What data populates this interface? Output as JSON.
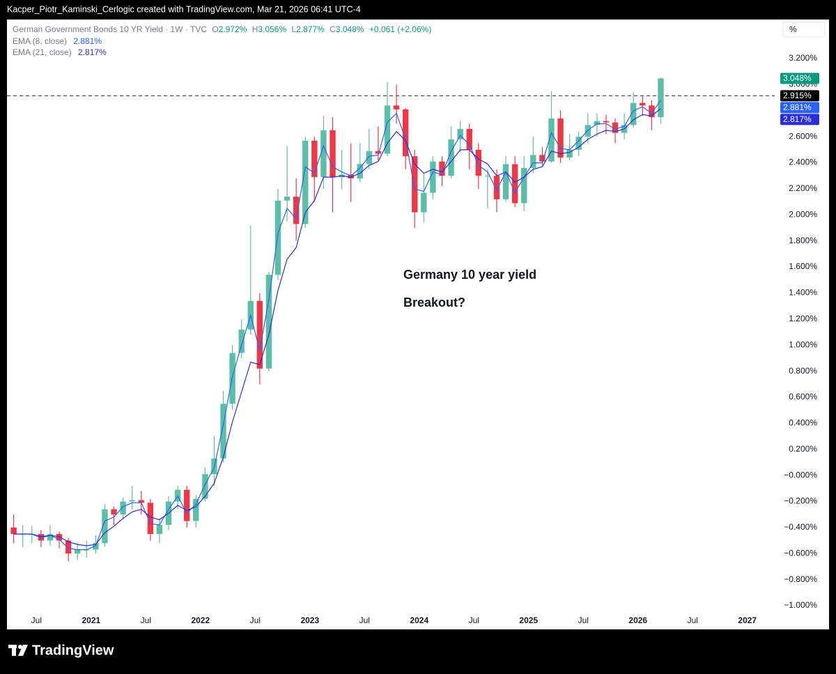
{
  "header": {
    "attribution": "Kacper_Piotr_Kaminski_Cerlogic created with TradingView.com, Mar 21, 2026 06:41 UTC-4"
  },
  "footer": {
    "brand": "TradingView"
  },
  "chart_data": {
    "type": "candlestick",
    "title": "German Government Bonds 10 YR Yield · 1W · TVC",
    "ohlc_legend": {
      "open_label": "O",
      "open": {
        "value": 2.972,
        "label": "2.972%"
      },
      "high_label": "H",
      "high": {
        "value": 3.056,
        "label": "3.056%"
      },
      "low_label": "L",
      "low": {
        "value": 2.877,
        "label": "2.877%"
      },
      "close_label": "C",
      "close": {
        "value": 3.048,
        "label": "3.048%"
      },
      "change": {
        "value": 0.061,
        "label": "+0.061 (+2.06%)"
      }
    },
    "x": [
      "2020-04",
      "2020-05",
      "2020-06",
      "2020-07",
      "2020-08",
      "2020-09",
      "2020-10",
      "2020-11",
      "2020-12",
      "2021-01",
      "2021-02",
      "2021-03",
      "2021-04",
      "2021-05",
      "2021-06",
      "2021-07",
      "2021-08",
      "2021-09",
      "2021-10",
      "2021-11",
      "2021-12",
      "2022-01",
      "2022-02",
      "2022-03",
      "2022-04",
      "2022-05",
      "2022-06",
      "2022-07",
      "2022-08",
      "2022-09",
      "2022-10",
      "2022-11",
      "2022-12",
      "2023-01",
      "2023-02",
      "2023-03",
      "2023-04",
      "2023-05",
      "2023-06",
      "2023-07",
      "2023-08",
      "2023-09",
      "2023-10",
      "2023-11",
      "2023-12",
      "2024-01",
      "2024-02",
      "2024-03",
      "2024-04",
      "2024-05",
      "2024-06",
      "2024-07",
      "2024-08",
      "2024-09",
      "2024-10",
      "2024-11",
      "2024-12",
      "2025-01",
      "2025-02",
      "2025-03",
      "2025-04",
      "2025-05",
      "2025-06",
      "2025-07",
      "2025-08",
      "2025-09",
      "2025-10",
      "2025-11",
      "2025-12",
      "2026-01",
      "2026-02",
      "2026-03"
    ],
    "open": [
      -0.4,
      -0.45,
      -0.45,
      -0.45,
      -0.5,
      -0.45,
      -0.5,
      -0.6,
      -0.57,
      -0.57,
      -0.52,
      -0.26,
      -0.3,
      -0.2,
      -0.19,
      -0.21,
      -0.45,
      -0.38,
      -0.2,
      -0.11,
      -0.35,
      -0.18,
      0.01,
      0.13,
      0.55,
      0.94,
      1.12,
      1.34,
      0.82,
      1.54,
      2.11,
      2.14,
      1.93,
      2.57,
      2.29,
      2.65,
      2.29,
      2.31,
      2.28,
      2.39,
      2.49,
      2.47,
      2.84,
      2.81,
      2.45,
      2.02,
      2.17,
      2.41,
      2.3,
      2.58,
      2.66,
      2.5,
      2.3,
      2.3,
      2.12,
      2.39,
      2.09,
      2.36,
      2.46,
      2.41,
      2.74,
      2.44,
      2.5,
      2.6,
      2.69,
      2.72,
      2.71,
      2.63,
      2.69,
      2.86,
      2.84,
      2.75
    ],
    "high": [
      -0.3,
      -0.38,
      -0.39,
      -0.42,
      -0.38,
      -0.43,
      -0.48,
      -0.52,
      -0.5,
      -0.46,
      -0.22,
      -0.24,
      -0.17,
      -0.08,
      -0.12,
      -0.18,
      -0.33,
      -0.16,
      -0.08,
      -0.08,
      -0.15,
      0.06,
      0.3,
      0.65,
      1.0,
      1.2,
      1.92,
      1.4,
      1.56,
      2.2,
      2.53,
      2.28,
      2.6,
      2.6,
      2.76,
      2.75,
      2.5,
      2.55,
      2.55,
      2.66,
      2.68,
      3.02,
      3.0,
      2.82,
      2.5,
      2.32,
      2.45,
      2.45,
      2.68,
      2.72,
      2.7,
      2.55,
      2.35,
      2.35,
      2.45,
      2.45,
      2.45,
      2.6,
      2.52,
      2.95,
      2.8,
      2.62,
      2.64,
      2.78,
      2.78,
      2.77,
      2.74,
      2.78,
      2.94,
      2.92,
      2.88,
      3.056
    ],
    "low": [
      -0.52,
      -0.55,
      -0.52,
      -0.55,
      -0.54,
      -0.56,
      -0.66,
      -0.65,
      -0.63,
      -0.6,
      -0.55,
      -0.38,
      -0.34,
      -0.26,
      -0.3,
      -0.5,
      -0.52,
      -0.42,
      -0.26,
      -0.4,
      -0.4,
      -0.2,
      -0.08,
      0.1,
      0.5,
      0.9,
      1.08,
      0.7,
      0.8,
      1.5,
      1.95,
      1.8,
      1.9,
      2.1,
      2.2,
      2.02,
      2.2,
      2.1,
      2.25,
      2.35,
      2.42,
      2.45,
      2.7,
      2.35,
      1.9,
      1.94,
      2.12,
      2.22,
      2.28,
      2.48,
      2.35,
      2.2,
      2.05,
      2.02,
      2.1,
      2.06,
      2.03,
      2.32,
      2.38,
      2.4,
      2.4,
      2.42,
      2.45,
      2.55,
      2.6,
      2.62,
      2.55,
      2.58,
      2.67,
      2.76,
      2.65,
      2.7
    ],
    "close": [
      -0.45,
      -0.45,
      -0.45,
      -0.5,
      -0.45,
      -0.5,
      -0.6,
      -0.57,
      -0.57,
      -0.52,
      -0.26,
      -0.3,
      -0.2,
      -0.19,
      -0.21,
      -0.45,
      -0.38,
      -0.2,
      -0.11,
      -0.35,
      -0.18,
      0.01,
      0.13,
      0.55,
      0.94,
      1.12,
      1.34,
      0.82,
      1.54,
      2.11,
      2.14,
      1.93,
      2.57,
      2.29,
      2.65,
      2.29,
      2.31,
      2.28,
      2.39,
      2.49,
      2.47,
      2.84,
      2.81,
      2.45,
      2.02,
      2.17,
      2.41,
      2.3,
      2.58,
      2.66,
      2.5,
      2.3,
      2.3,
      2.12,
      2.39,
      2.09,
      2.36,
      2.46,
      2.41,
      2.74,
      2.44,
      2.5,
      2.6,
      2.69,
      2.72,
      2.71,
      2.63,
      2.69,
      2.86,
      2.84,
      2.75,
      3.048
    ],
    "up_color": "#5bbfa8",
    "down_color": "#f23645",
    "series": [
      {
        "name": "EMA (8, close)",
        "color": "#2962ff",
        "last": {
          "value": 2.881,
          "label": "2.881%"
        },
        "values": [
          -0.45,
          -0.45,
          -0.45,
          -0.48,
          -0.46,
          -0.49,
          -0.56,
          -0.57,
          -0.57,
          -0.54,
          -0.35,
          -0.32,
          -0.24,
          -0.21,
          -0.21,
          -0.37,
          -0.38,
          -0.26,
          -0.16,
          -0.29,
          -0.22,
          -0.07,
          0.06,
          0.39,
          0.76,
          1.0,
          1.23,
          0.96,
          1.35,
          1.86,
          2.05,
          1.97,
          2.37,
          2.32,
          2.53,
          2.37,
          2.33,
          2.3,
          2.36,
          2.45,
          2.46,
          2.71,
          2.78,
          2.58,
          2.2,
          2.18,
          2.33,
          2.31,
          2.49,
          2.61,
          2.54,
          2.38,
          2.33,
          2.19,
          2.33,
          2.17,
          2.29,
          2.4,
          2.4,
          2.63,
          2.51,
          2.5,
          2.57,
          2.65,
          2.7,
          2.7,
          2.66,
          2.68,
          2.8,
          2.83,
          2.78,
          2.881
        ]
      },
      {
        "name": "EMA (21, close)",
        "color": "#2a2ed6",
        "last": {
          "value": 2.817,
          "label": "2.817%"
        },
        "values": [
          -0.45,
          -0.45,
          -0.45,
          -0.47,
          -0.46,
          -0.47,
          -0.51,
          -0.53,
          -0.54,
          -0.53,
          -0.44,
          -0.39,
          -0.33,
          -0.28,
          -0.26,
          -0.32,
          -0.34,
          -0.29,
          -0.23,
          -0.27,
          -0.24,
          -0.16,
          -0.06,
          0.14,
          0.41,
          0.64,
          0.87,
          0.85,
          1.08,
          1.42,
          1.66,
          1.75,
          2.02,
          2.11,
          2.29,
          2.29,
          2.3,
          2.29,
          2.32,
          2.38,
          2.41,
          2.55,
          2.64,
          2.57,
          2.39,
          2.32,
          2.35,
          2.33,
          2.41,
          2.5,
          2.5,
          2.43,
          2.39,
          2.3,
          2.33,
          2.25,
          2.29,
          2.35,
          2.37,
          2.49,
          2.47,
          2.48,
          2.52,
          2.58,
          2.62,
          2.65,
          2.64,
          2.66,
          2.73,
          2.77,
          2.76,
          2.817
        ]
      }
    ],
    "last_price": {
      "value": 3.048,
      "label": "3.048%"
    },
    "reference_line": {
      "value": 2.915,
      "label": "2.915%"
    },
    "annotations": [
      "Germany 10 year yield",
      "Breakout?"
    ],
    "y_unit": "%",
    "grid": false,
    "ylim": [
      -1.059,
      3.5
    ],
    "yticks": [
      {
        "value": 3.2,
        "label": "3.200%"
      },
      {
        "value": 3.0,
        "label": "3.000%"
      },
      {
        "value": 2.8,
        "label": "2.800%"
      },
      {
        "value": 2.6,
        "label": "2.600%"
      },
      {
        "value": 2.4,
        "label": "2.400%"
      },
      {
        "value": 2.2,
        "label": "2.200%"
      },
      {
        "value": 2.0,
        "label": "2.000%"
      },
      {
        "value": 1.8,
        "label": "1.800%"
      },
      {
        "value": 1.6,
        "label": "1.600%"
      },
      {
        "value": 1.4,
        "label": "1.400%"
      },
      {
        "value": 1.2,
        "label": "1.200%"
      },
      {
        "value": 1.0,
        "label": "1.000%"
      },
      {
        "value": 0.8,
        "label": "0.800%"
      },
      {
        "value": 0.6,
        "label": "0.600%"
      },
      {
        "value": 0.4,
        "label": "0.400%"
      },
      {
        "value": 0.2,
        "label": "0.200%"
      },
      {
        "value": 0,
        "label": "−0.000%"
      },
      {
        "value": -0.2,
        "label": "−0.200%"
      },
      {
        "value": -0.4,
        "label": "−0.400%"
      },
      {
        "value": -0.6,
        "label": "−0.600%"
      },
      {
        "value": -0.8,
        "label": "−0.800%"
      },
      {
        "value": -1.0,
        "label": "−1.000%"
      }
    ],
    "xlim": [
      "2020-03",
      "2027-04"
    ],
    "xticks": [
      {
        "value": "2020-07",
        "label": "Jul"
      },
      {
        "value": "2021-01",
        "label": "2021"
      },
      {
        "value": "2021-07",
        "label": "Jul"
      },
      {
        "value": "2022-01",
        "label": "2022"
      },
      {
        "value": "2022-07",
        "label": "Jul"
      },
      {
        "value": "2023-01",
        "label": "2023"
      },
      {
        "value": "2023-07",
        "label": "Jul"
      },
      {
        "value": "2024-01",
        "label": "2024"
      },
      {
        "value": "2024-07",
        "label": "Jul"
      },
      {
        "value": "2025-01",
        "label": "2025"
      },
      {
        "value": "2025-07",
        "label": "Jul"
      },
      {
        "value": "2026-01",
        "label": "2026"
      },
      {
        "value": "2026-07",
        "label": "Jul"
      },
      {
        "value": "2027-01",
        "label": "2027"
      }
    ]
  }
}
